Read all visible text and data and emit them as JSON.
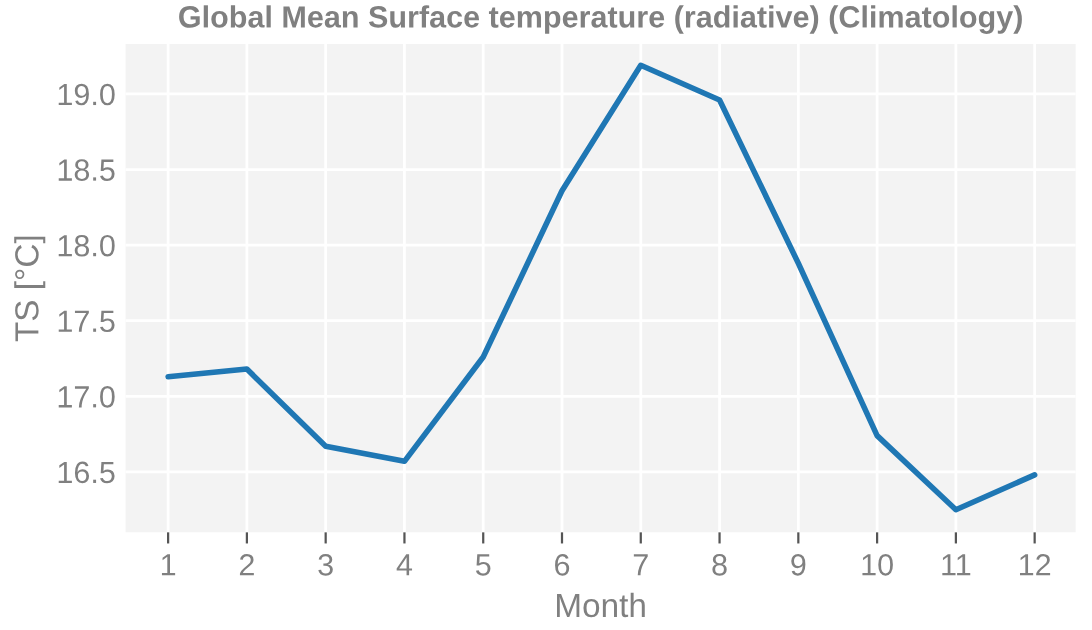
{
  "chart_data": {
    "type": "line",
    "title": "Global Mean Surface temperature (radiative) (Climatology)",
    "xlabel": "Month",
    "ylabel": "TS [°C]",
    "x": [
      1,
      2,
      3,
      4,
      5,
      6,
      7,
      8,
      9,
      10,
      11,
      12
    ],
    "series": [
      {
        "color": "#1f77b4",
        "values": [
          17.13,
          17.18,
          16.67,
          16.57,
          17.26,
          18.36,
          19.19,
          18.96,
          17.88,
          16.74,
          16.25,
          16.48
        ]
      }
    ],
    "xlim": [
      0.46,
      12.52
    ],
    "xticks": [
      1,
      2,
      3,
      4,
      5,
      6,
      7,
      8,
      9,
      10,
      11,
      12
    ],
    "ylim": [
      16.1,
      19.33
    ],
    "yticks": [
      {
        "value": 16.5,
        "label": "16.5"
      },
      {
        "value": 17.0,
        "label": "17.0"
      },
      {
        "value": 17.5,
        "label": "17.5"
      },
      {
        "value": 18.0,
        "label": "18.0"
      },
      {
        "value": 18.5,
        "label": "18.5"
      },
      {
        "value": 19.0,
        "label": "19.0"
      }
    ],
    "grid": true,
    "line_style": "solid",
    "marker": "none"
  }
}
